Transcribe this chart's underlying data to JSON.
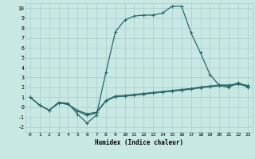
{
  "title": "",
  "xlabel": "Humidex (Indice chaleur)",
  "xlim": [
    -0.5,
    23.5
  ],
  "ylim": [
    -2.5,
    10.5
  ],
  "background_color": "#c8e8e4",
  "grid_color": "#a8cccc",
  "line_color": "#2a6868",
  "line1_x": [
    0,
    1,
    2,
    3,
    4,
    5,
    6,
    7,
    8,
    9,
    10,
    11,
    12,
    13,
    14,
    15,
    16,
    17,
    18,
    19,
    20,
    21,
    22,
    23
  ],
  "line1_y": [
    1.0,
    0.2,
    -0.3,
    0.5,
    0.4,
    -0.7,
    -1.6,
    -0.8,
    3.5,
    7.6,
    8.8,
    9.2,
    9.3,
    9.3,
    9.5,
    10.2,
    10.2,
    7.5,
    5.5,
    3.3,
    2.2,
    2.0,
    2.5,
    2.0
  ],
  "line2_x": [
    0,
    1,
    2,
    3,
    4,
    5,
    6,
    7,
    8,
    9,
    10,
    11,
    12,
    13,
    14,
    15,
    16,
    17,
    18,
    19,
    20,
    21,
    22,
    23
  ],
  "line2_y": [
    1.0,
    0.2,
    -0.3,
    0.4,
    0.3,
    -0.4,
    -0.85,
    -0.6,
    0.6,
    1.05,
    1.1,
    1.2,
    1.3,
    1.4,
    1.5,
    1.6,
    1.7,
    1.8,
    1.95,
    2.05,
    2.15,
    2.15,
    2.3,
    2.1
  ],
  "line3_x": [
    0,
    1,
    2,
    3,
    4,
    5,
    6,
    7,
    8,
    9,
    10,
    11,
    12,
    13,
    14,
    15,
    16,
    17,
    18,
    19,
    20,
    21,
    22,
    23
  ],
  "line3_y": [
    1.0,
    0.2,
    -0.3,
    0.4,
    0.3,
    -0.35,
    -0.75,
    -0.55,
    0.65,
    1.1,
    1.15,
    1.25,
    1.35,
    1.45,
    1.55,
    1.65,
    1.75,
    1.85,
    2.0,
    2.1,
    2.2,
    2.2,
    2.35,
    2.15
  ],
  "line4_x": [
    0,
    1,
    2,
    3,
    4,
    5,
    6,
    7,
    8,
    9,
    10,
    11,
    12,
    13,
    14,
    15,
    16,
    17,
    18,
    19,
    20,
    21,
    22,
    23
  ],
  "line4_y": [
    1.0,
    0.2,
    -0.3,
    0.4,
    0.3,
    -0.3,
    -0.65,
    -0.5,
    0.7,
    1.15,
    1.2,
    1.3,
    1.4,
    1.5,
    1.6,
    1.7,
    1.8,
    1.9,
    2.05,
    2.15,
    2.25,
    2.25,
    2.4,
    2.2
  ]
}
